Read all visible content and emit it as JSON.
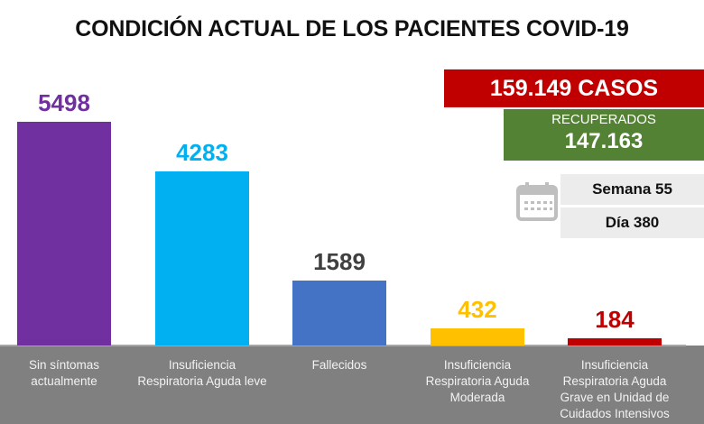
{
  "chart_data": {
    "type": "bar",
    "title": "CONDICIÓN ACTUAL DE LOS PACIENTES COVID-19",
    "categories": [
      "Sin síntomas\nactualmente",
      "Insuficiencia\nRespiratoria Aguda leve",
      "Fallecidos",
      "Insuficiencia\nRespiratoria Aguda\nModerada",
      "Insuficiencia\nRespiratoria Aguda\nGrave en Unidad de\nCuidados Intensivos"
    ],
    "values": [
      5498,
      4283,
      1589,
      432,
      184
    ],
    "value_labels": [
      "5498",
      "4283",
      "1589",
      "432",
      "184"
    ],
    "colors": [
      "#7030a0",
      "#00b0f0",
      "#4472c4",
      "#ffc000",
      "#c00000"
    ],
    "label_colors": [
      "#7030a0",
      "#00b0f0",
      "#404040",
      "#ffc000",
      "#c00000"
    ],
    "xlabel": "",
    "ylabel": "",
    "ylim": [
      0,
      5500
    ],
    "grid": false,
    "legend": "none"
  },
  "summary": {
    "cases_label": "159.149 CASOS",
    "recovered_label": "RECUPERADOS",
    "recovered_value": "147.163",
    "week_label": "Semana 55",
    "day_label": "Día 380",
    "calendar_icon": "calendar-icon",
    "colors": {
      "cases": "#c00000",
      "recovered": "#548235",
      "info_box": "#ececec"
    }
  }
}
